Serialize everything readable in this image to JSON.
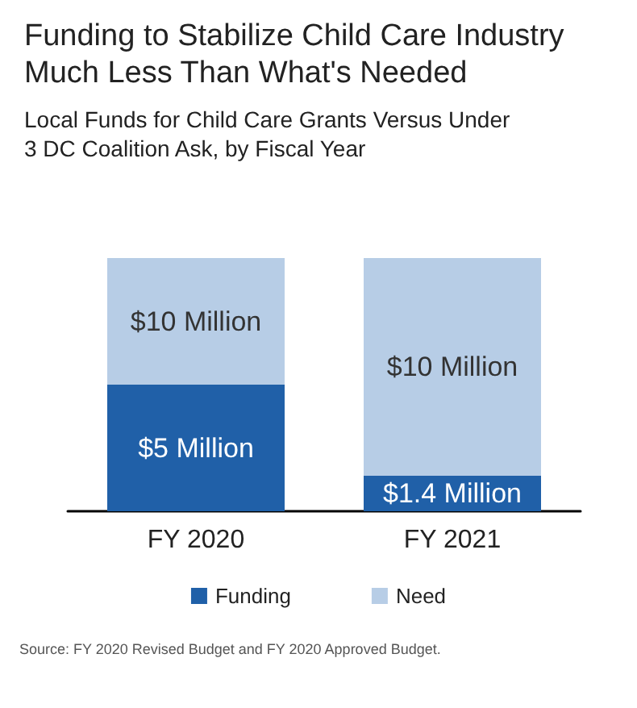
{
  "chart_data": {
    "type": "bar",
    "title": "Funding to Stabilize Child Care Industry Much Less Than What's Needed",
    "subtitle": "Local Funds for Child Care Grants Versus Under 3 DC Coalition Ask, by Fiscal Year",
    "categories": [
      "FY 2020",
      "FY 2021"
    ],
    "stacked": true,
    "series": [
      {
        "name": "Funding",
        "color": "#2060a8",
        "values": [
          5,
          1.4
        ],
        "value_labels": [
          "$5 Million",
          "$1.4 Million"
        ]
      },
      {
        "name": "Need",
        "color": "#b7cde6",
        "values": [
          5,
          8.6
        ]
      }
    ],
    "legend": "bottom",
    "annotations": [
      "$10 Million",
      "$10 Million",
      "Source: FY 2020 Revised Budget and FY 2020 Approved Budget."
    ]
  }
}
